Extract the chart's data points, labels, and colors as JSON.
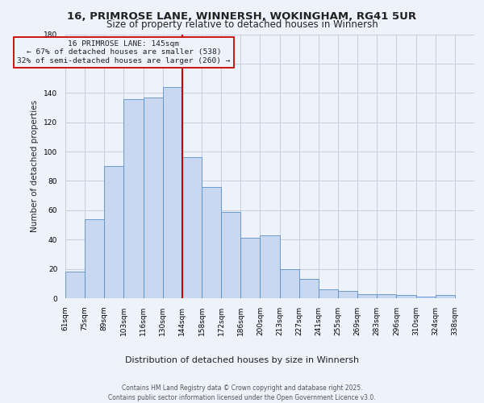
{
  "title_line1": "16, PRIMROSE LANE, WINNERSH, WOKINGHAM, RG41 5UR",
  "title_line2": "Size of property relative to detached houses in Winnersh",
  "xlabel": "Distribution of detached houses by size in Winnersh",
  "ylabel": "Number of detached properties",
  "footer_line1": "Contains HM Land Registry data © Crown copyright and database right 2025.",
  "footer_line2": "Contains public sector information licensed under the Open Government Licence v3.0.",
  "annotation_line1": "16 PRIMROSE LANE: 145sqm",
  "annotation_line2": "← 67% of detached houses are smaller (538)",
  "annotation_line3": "32% of semi-detached houses are larger (260) →",
  "bin_labels": [
    "61sqm",
    "75sqm",
    "89sqm",
    "103sqm",
    "116sqm",
    "130sqm",
    "144sqm",
    "158sqm",
    "172sqm",
    "186sqm",
    "200sqm",
    "213sqm",
    "227sqm",
    "241sqm",
    "255sqm",
    "269sqm",
    "283sqm",
    "296sqm",
    "310sqm",
    "324sqm",
    "338sqm"
  ],
  "bin_heights": [
    18,
    54,
    90,
    136,
    137,
    144,
    96,
    76,
    59,
    41,
    43,
    20,
    13,
    6,
    5,
    3,
    3,
    2,
    1,
    2,
    0
  ],
  "vline_pos": 6,
  "bar_color": "#c8d8f0",
  "bar_edge_color": "#5b8fcc",
  "vline_color": "#cc0000",
  "bg_color": "#edf2fb",
  "grid_color": "#c5cde0",
  "annot_face": "#edf2fb",
  "annot_edge": "#cc0000",
  "text_color": "#222222",
  "footer_color": "#555555",
  "ylim": [
    0,
    180
  ],
  "yticks": [
    0,
    20,
    40,
    60,
    80,
    100,
    120,
    140,
    160,
    180
  ],
  "title1_fontsize": 9.5,
  "title2_fontsize": 8.5,
  "ylabel_fontsize": 7.5,
  "xlabel_fontsize": 8.0,
  "tick_fontsize": 6.5,
  "annot_fontsize": 6.8,
  "footer_fontsize": 5.5
}
